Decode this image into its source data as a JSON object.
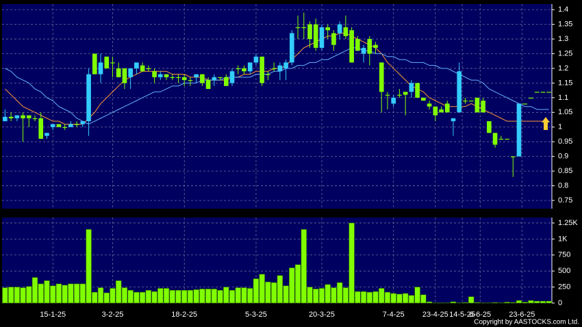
{
  "chart_data": [
    {
      "type": "candlestick",
      "up_color": "#33ccff",
      "down_color": "#80ff00",
      "xlim": [
        -0.5,
        91.5
      ],
      "ylim": [
        0.722,
        1.419
      ],
      "yticks": [
        0.75,
        0.8,
        0.85,
        0.9,
        0.95,
        1,
        1.05,
        1.1,
        1.15,
        1.2,
        1.25,
        1.3,
        1.35,
        1.4
      ],
      "grid": true,
      "open": [
        1.02,
        1.035,
        1.03,
        1.04,
        1.04,
        1.03,
        1.03,
        0.97,
        1.0,
        1.01,
        1.0,
        1.0,
        1.01,
        1.01,
        1.02,
        1.25,
        1.18,
        1.24,
        1.22,
        1.2,
        1.2,
        1.17,
        1.2,
        1.21,
        1.2,
        1.19,
        1.17,
        1.18,
        1.17,
        1.17,
        1.17,
        1.16,
        1.17,
        1.18,
        1.16,
        1.16,
        1.17,
        1.17,
        1.15,
        1.2,
        1.2,
        1.19,
        1.22,
        1.24,
        1.18,
        1.2,
        1.19,
        1.2,
        1.22,
        1.34,
        1.34,
        1.35,
        1.35,
        1.27,
        1.34,
        1.32,
        1.32,
        1.34,
        1.33,
        1.3,
        1.25,
        1.3,
        1.28,
        1.22,
        1.11,
        1.08,
        1.11,
        1.12,
        1.12,
        1.15,
        1.1,
        1.08,
        1.07,
        1.06,
        1.08,
        1.02,
        1.05,
        1.09,
        1.09,
        1.1,
        1.09,
        1.02,
        0.98,
        0.96,
        0.96,
        0.9,
        0.9,
        1.08,
        1.1,
        1.12,
        1.12,
        1.12
      ],
      "high": [
        1.06,
        1.05,
        1.04,
        1.05,
        1.04,
        1.04,
        1.05,
        0.98,
        1.01,
        1.01,
        1.01,
        1.02,
        1.02,
        1.02,
        1.2,
        1.25,
        1.25,
        1.24,
        1.24,
        1.22,
        1.2,
        1.2,
        1.22,
        1.22,
        1.21,
        1.2,
        1.19,
        1.18,
        1.18,
        1.18,
        1.18,
        1.17,
        1.18,
        1.18,
        1.17,
        1.18,
        1.17,
        1.18,
        1.2,
        1.21,
        1.21,
        1.22,
        1.25,
        1.24,
        1.19,
        1.22,
        1.22,
        1.23,
        1.33,
        1.38,
        1.39,
        1.36,
        1.37,
        1.35,
        1.35,
        1.33,
        1.36,
        1.38,
        1.34,
        1.31,
        1.28,
        1.31,
        1.29,
        1.22,
        1.12,
        1.11,
        1.13,
        1.12,
        1.16,
        1.15,
        1.1,
        1.09,
        1.07,
        1.07,
        1.09,
        1.03,
        1.22,
        1.1,
        1.09,
        1.1,
        1.1,
        1.02,
        0.98,
        0.97,
        0.96,
        0.9,
        1.08,
        1.08,
        1.1,
        1.12,
        1.12,
        1.12
      ],
      "low": [
        1.02,
        1.02,
        1.02,
        0.95,
        1.0,
        1.02,
        0.96,
        0.96,
        0.99,
        1.0,
        0.99,
        1.0,
        1.0,
        1.0,
        0.97,
        1.18,
        1.15,
        1.2,
        1.17,
        1.17,
        1.13,
        1.13,
        1.18,
        1.19,
        1.19,
        1.15,
        1.16,
        1.16,
        1.16,
        1.15,
        1.14,
        1.14,
        1.15,
        1.14,
        1.13,
        1.14,
        1.16,
        1.14,
        1.14,
        1.18,
        1.18,
        1.18,
        1.21,
        1.14,
        1.16,
        1.19,
        1.16,
        1.16,
        1.21,
        1.3,
        1.3,
        1.27,
        1.26,
        1.26,
        1.3,
        1.26,
        1.3,
        1.3,
        1.22,
        1.26,
        1.22,
        1.21,
        1.25,
        1.05,
        1.06,
        1.07,
        1.1,
        1.04,
        1.1,
        1.1,
        1.09,
        1.06,
        1.02,
        1.05,
        1.05,
        0.97,
        1.05,
        1.08,
        1.09,
        1.05,
        1.05,
        0.98,
        0.93,
        0.96,
        0.96,
        0.83,
        0.9,
        1.08,
        1.1,
        1.12,
        1.12,
        1.12
      ],
      "close": [
        1.035,
        1.03,
        1.04,
        1.03,
        1.03,
        1.03,
        0.96,
        0.98,
        1.01,
        1.0,
        1.0,
        1.01,
        1.01,
        1.02,
        1.18,
        1.18,
        1.22,
        1.2,
        1.22,
        1.17,
        1.15,
        1.2,
        1.22,
        1.19,
        1.2,
        1.17,
        1.18,
        1.17,
        1.17,
        1.17,
        1.16,
        1.16,
        1.18,
        1.15,
        1.13,
        1.17,
        1.17,
        1.14,
        1.19,
        1.2,
        1.19,
        1.22,
        1.24,
        1.15,
        1.18,
        1.2,
        1.21,
        1.22,
        1.32,
        1.34,
        1.34,
        1.3,
        1.27,
        1.34,
        1.33,
        1.28,
        1.35,
        1.31,
        1.22,
        1.26,
        1.27,
        1.25,
        1.27,
        1.12,
        1.11,
        1.1,
        1.11,
        1.11,
        1.15,
        1.1,
        1.09,
        1.07,
        1.04,
        1.05,
        1.05,
        1.03,
        1.19,
        1.09,
        1.09,
        1.05,
        1.05,
        0.98,
        0.94,
        0.96,
        0.96,
        0.9,
        1.08,
        1.08,
        1.1,
        1.12,
        1.12,
        1.12
      ],
      "series": [
        {
          "color": "#ff9933",
          "values": [
            1.13,
            1.11,
            1.09,
            1.07,
            1.06,
            1.05,
            1.04,
            1.03,
            1.02,
            1.02,
            1.01,
            1.01,
            1.01,
            1.01,
            1.03,
            1.05,
            1.08,
            1.1,
            1.12,
            1.14,
            1.16,
            1.17,
            1.18,
            1.19,
            1.19,
            1.19,
            1.19,
            1.19,
            1.18,
            1.18,
            1.18,
            1.17,
            1.17,
            1.17,
            1.16,
            1.16,
            1.16,
            1.16,
            1.17,
            1.17,
            1.18,
            1.18,
            1.19,
            1.19,
            1.19,
            1.2,
            1.2,
            1.21,
            1.23,
            1.25,
            1.27,
            1.28,
            1.29,
            1.3,
            1.31,
            1.31,
            1.32,
            1.32,
            1.31,
            1.3,
            1.29,
            1.28,
            1.27,
            1.25,
            1.22,
            1.2,
            1.18,
            1.16,
            1.14,
            1.13,
            1.12,
            1.1,
            1.09,
            1.08,
            1.07,
            1.07,
            1.07,
            1.07,
            1.08,
            1.07,
            1.06,
            1.05,
            1.04,
            1.03,
            1.02,
            1.02,
            1.02,
            1.02,
            1.02,
            1.02,
            1.02,
            1.02
          ]
        },
        {
          "color": "#66b3ff",
          "values": [
            1.2,
            1.19,
            1.17,
            1.16,
            1.15,
            1.13,
            1.12,
            1.1,
            1.09,
            1.07,
            1.06,
            1.05,
            1.03,
            1.02,
            1.01,
            1.02,
            1.03,
            1.04,
            1.05,
            1.06,
            1.07,
            1.08,
            1.09,
            1.1,
            1.11,
            1.12,
            1.12,
            1.13,
            1.14,
            1.14,
            1.15,
            1.15,
            1.15,
            1.16,
            1.16,
            1.16,
            1.16,
            1.17,
            1.17,
            1.17,
            1.17,
            1.17,
            1.18,
            1.18,
            1.18,
            1.19,
            1.19,
            1.2,
            1.2,
            1.21,
            1.21,
            1.22,
            1.22,
            1.23,
            1.23,
            1.24,
            1.25,
            1.26,
            1.27,
            1.27,
            1.26,
            1.26,
            1.25,
            1.25,
            1.24,
            1.24,
            1.23,
            1.23,
            1.22,
            1.22,
            1.22,
            1.21,
            1.21,
            1.2,
            1.2,
            1.19,
            1.18,
            1.17,
            1.16,
            1.16,
            1.15,
            1.13,
            1.12,
            1.11,
            1.1,
            1.09,
            1.08,
            1.07,
            1.07,
            1.06,
            1.06,
            1.06
          ]
        }
      ]
    },
    {
      "type": "bar",
      "color": "#80ff00",
      "xlim": [
        -0.5,
        91.5
      ],
      "ylim": [
        0,
        1335
      ],
      "yticks": [
        0,
        250,
        500,
        750,
        {
          "value": 1000,
          "label": "1K"
        },
        {
          "value": 1250,
          "label": "1.25K"
        }
      ],
      "xticks": [
        {
          "value": 8,
          "label": "15-1-25"
        },
        {
          "value": 18,
          "label": "3-2-25"
        },
        {
          "value": 30,
          "label": "18-2-25"
        },
        {
          "value": 42,
          "label": "5-3-25"
        },
        {
          "value": 53,
          "label": "20-3-25"
        },
        {
          "value": 65,
          "label": "7-4-25"
        },
        {
          "value": 72,
          "label": "23-4-25"
        },
        {
          "value": 76.5,
          "label": "14-5-25"
        },
        {
          "value": 79.5,
          "label": "6-6-25"
        },
        {
          "value": 86.5,
          "label": "23-6-25"
        }
      ],
      "grid": true,
      "values": [
        240,
        250,
        250,
        240,
        260,
        400,
        300,
        350,
        270,
        300,
        280,
        300,
        300,
        300,
        1150,
        170,
        240,
        160,
        230,
        350,
        240,
        200,
        170,
        170,
        200,
        180,
        230,
        230,
        200,
        200,
        200,
        200,
        210,
        220,
        220,
        220,
        200,
        250,
        200,
        240,
        240,
        230,
        380,
        450,
        330,
        320,
        430,
        270,
        550,
        600,
        1150,
        250,
        220,
        230,
        290,
        240,
        320,
        240,
        1250,
        180,
        180,
        170,
        180,
        230,
        170,
        150,
        140,
        150,
        120,
        250,
        130,
        20,
        5,
        5,
        5,
        20,
        5,
        10,
        100,
        10,
        5,
        5,
        10,
        5,
        15,
        10,
        40,
        15,
        40,
        30,
        30,
        30
      ],
      "copyright": "Copyright by AASTOCKS.com Ltd."
    }
  ]
}
